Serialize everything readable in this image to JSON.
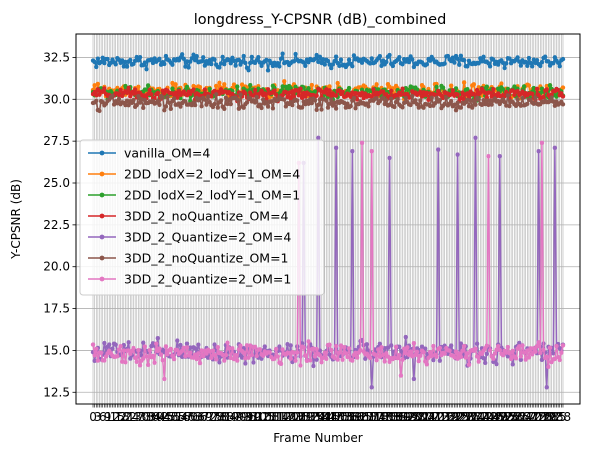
{
  "chart_data": {
    "type": "line",
    "title": "longdress_Y-CPSNR (dB)_combined",
    "xlabel": "Frame Number",
    "ylabel": "Y-CPSNR (dB)",
    "ylim": [
      11.8,
      33.9
    ],
    "xlim": [
      -10.5,
      300.5
    ],
    "yticks": [
      12.5,
      15.0,
      17.5,
      20.0,
      22.5,
      25.0,
      27.5,
      30.0,
      32.5
    ],
    "ytick_labels": [
      "12.5",
      "15.0",
      "17.5",
      "20.0",
      "22.5",
      "25.0",
      "27.5",
      "30.0",
      "32.5"
    ],
    "x_start": 0,
    "x_count": 291,
    "grid": true,
    "legend_position": "center-left",
    "series": [
      {
        "name": "vanilla_OM=4",
        "color": "#1f77b4",
        "base": 32.25,
        "amp": 0.35
      },
      {
        "name": "2DD_lodX=2_lodY=1_OM=4",
        "color": "#ff7f0e",
        "base": 30.5,
        "amp": 0.4
      },
      {
        "name": "2DD_lodX=2_lodY=1_OM=1",
        "color": "#2ca02c",
        "base": 30.4,
        "amp": 0.35
      },
      {
        "name": "3DD_2_noQuantize_OM=4",
        "color": "#d62728",
        "base": 30.3,
        "amp": 0.3
      },
      {
        "name": "3DD_2_Quantize=2_OM=4",
        "color": "#9467bd",
        "base": 14.9,
        "amp": 0.6,
        "spikes": [
          [
            130,
            26.2
          ],
          [
            139,
            27.7
          ],
          [
            150,
            27.1
          ],
          [
            160,
            26.9
          ],
          [
            183,
            26.5
          ],
          [
            213,
            27.0
          ],
          [
            225,
            26.7
          ],
          [
            236,
            27.7
          ],
          [
            251,
            26.6
          ],
          [
            275,
            26.9
          ],
          [
            285,
            27.1
          ]
        ],
        "dips": [
          [
            172,
            12.8
          ],
          [
            280,
            12.8
          ],
          [
            198,
            13.3
          ]
        ]
      },
      {
        "name": "3DD_2_noQuantize_OM=1",
        "color": "#8c564b",
        "base": 29.8,
        "amp": 0.35
      },
      {
        "name": "3DD_2_Quantize=2_OM=1",
        "color": "#e377c2",
        "base": 14.8,
        "amp": 0.55,
        "spikes": [
          [
            127,
            26.2
          ],
          [
            166,
            27.4
          ],
          [
            172,
            26.9
          ],
          [
            244,
            26.6
          ],
          [
            277,
            27.4
          ]
        ],
        "dips": [
          [
            44,
            13.3
          ],
          [
            190,
            13.5
          ]
        ]
      }
    ]
  }
}
